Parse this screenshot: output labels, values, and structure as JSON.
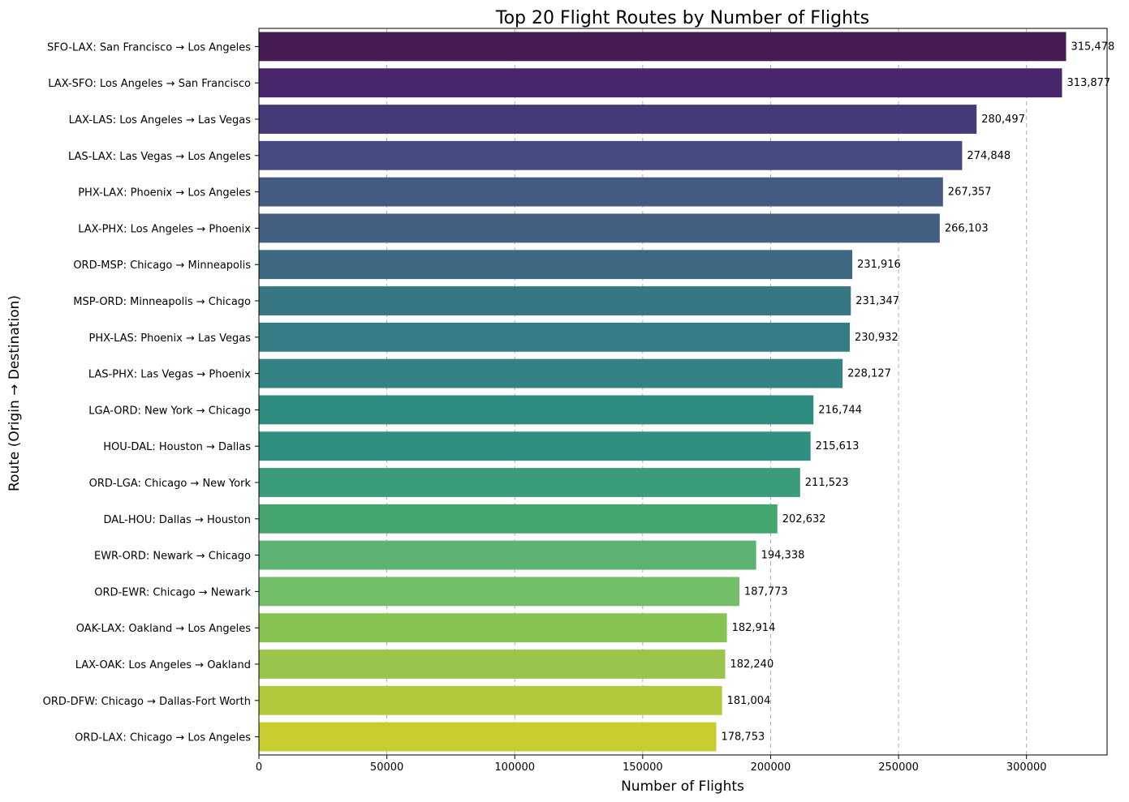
{
  "chart_data": {
    "type": "bar",
    "orientation": "horizontal",
    "title": "Top 20 Flight Routes by Number of Flights",
    "xlabel": "Number of Flights",
    "ylabel": "Route (Origin → Destination)",
    "xlim": [
      0,
      331500
    ],
    "xticks": [
      0,
      50000,
      100000,
      150000,
      200000,
      250000,
      300000
    ],
    "grid": "x-axis dashed",
    "colormap": "viridis",
    "categories": [
      "SFO-LAX: San Francisco → Los Angeles",
      "LAX-SFO: Los Angeles → San Francisco",
      "LAX-LAS: Los Angeles → Las Vegas",
      "LAS-LAX: Las Vegas → Los Angeles",
      "PHX-LAX: Phoenix → Los Angeles",
      "LAX-PHX: Los Angeles → Phoenix",
      "ORD-MSP: Chicago → Minneapolis",
      "MSP-ORD: Minneapolis → Chicago",
      "PHX-LAS: Phoenix → Las Vegas",
      "LAS-PHX: Las Vegas → Phoenix",
      "LGA-ORD: New York → Chicago",
      "HOU-DAL: Houston → Dallas",
      "ORD-LGA: Chicago → New York",
      "DAL-HOU: Dallas → Houston",
      "EWR-ORD: Newark → Chicago",
      "ORD-EWR: Chicago → Newark",
      "OAK-LAX: Oakland → Los Angeles",
      "LAX-OAK: Los Angeles → Oakland",
      "ORD-DFW: Chicago → Dallas-Fort Worth",
      "ORD-LAX: Chicago → Los Angeles"
    ],
    "values": [
      315478,
      313877,
      280497,
      274848,
      267357,
      266103,
      231916,
      231347,
      230932,
      228127,
      216744,
      215613,
      211523,
      202632,
      194338,
      187773,
      182914,
      182240,
      181004,
      178753
    ],
    "value_labels": [
      "315,478",
      "313,877",
      "280,497",
      "274,848",
      "267,357",
      "266,103",
      "231,916",
      "231,347",
      "230,932",
      "228,127",
      "216,744",
      "215,613",
      "211,523",
      "202,632",
      "194,338",
      "187,773",
      "182,914",
      "182,240",
      "181,004",
      "178,753"
    ],
    "colors": [
      "#471c55",
      "#47266b",
      "#473a78",
      "#474a80",
      "#445a81",
      "#435f82",
      "#3e6882",
      "#377683",
      "#347d84",
      "#338384",
      "#2e8b80",
      "#2f9080",
      "#3a9c7b",
      "#44a56f",
      "#5cb271",
      "#71bd68",
      "#86c352",
      "#99c64a",
      "#b1ca3b",
      "#c7cd2f"
    ]
  }
}
